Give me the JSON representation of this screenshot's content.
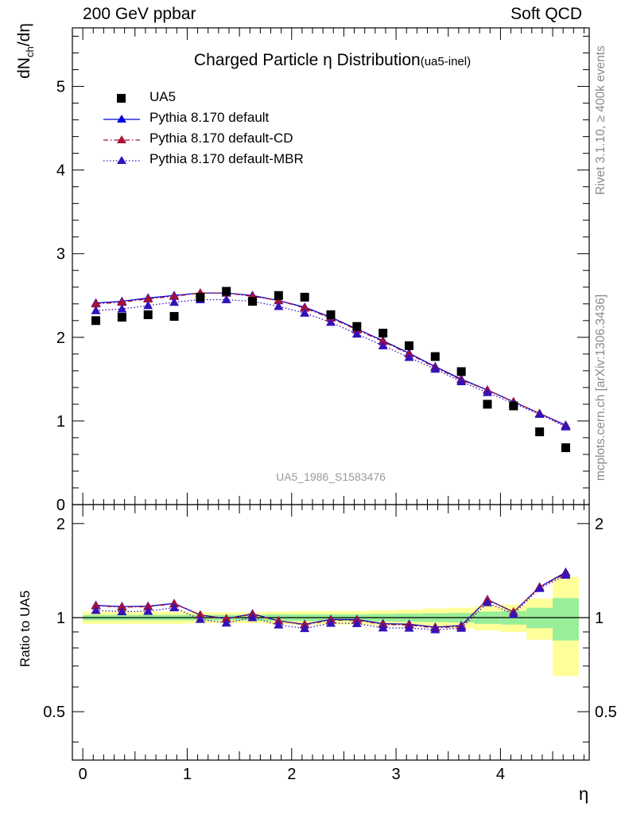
{
  "header": {
    "left": "200 GeV ppbar",
    "right": "Soft QCD"
  },
  "side_labels": {
    "rivet": "Rivet 3.1.10, ≥ 400k events",
    "mcplots": "mcplots.cern.ch [arXiv:1306.3436]"
  },
  "chart_data": {
    "type": "scatter",
    "title": "Charged Particle η Distribution",
    "title_suffix": "(ua5-inel)",
    "watermark": "UA5_1986_S1583476",
    "xlabel": "η",
    "ylabel": "dN_ch/dη",
    "ratio_ylabel": "Ratio to UA5",
    "xlim": [
      -0.1,
      4.85
    ],
    "ylim": [
      0,
      5.7
    ],
    "ratio_ylim": [
      0.35,
      2.3
    ],
    "x_ticks": [
      0,
      1,
      2,
      3,
      4
    ],
    "y_ticks": [
      0,
      1,
      2,
      3,
      4,
      5
    ],
    "ratio_ticks": [
      0.5,
      1,
      2
    ],
    "x": [
      0.125,
      0.375,
      0.625,
      0.875,
      1.125,
      1.375,
      1.625,
      1.875,
      2.125,
      2.375,
      2.625,
      2.875,
      3.125,
      3.375,
      3.625,
      3.875,
      4.125,
      4.375,
      4.625
    ],
    "data_series": {
      "name": "UA5",
      "color": "#000000",
      "values": [
        2.2,
        2.24,
        2.27,
        2.25,
        2.48,
        2.55,
        2.43,
        2.5,
        2.48,
        2.27,
        2.13,
        2.05,
        1.9,
        1.77,
        1.59,
        1.2,
        1.18,
        0.87,
        0.68
      ]
    },
    "series": [
      {
        "name": "Pythia 8.170 default",
        "color": "#0000dd",
        "style": "solid",
        "values": [
          2.41,
          2.43,
          2.47,
          2.5,
          2.53,
          2.53,
          2.5,
          2.44,
          2.36,
          2.24,
          2.1,
          1.96,
          1.81,
          1.65,
          1.5,
          1.37,
          1.23,
          1.09,
          0.95
        ],
        "ratio": [
          1.095,
          1.085,
          1.088,
          1.11,
          1.02,
          0.992,
          1.029,
          0.976,
          0.952,
          0.987,
          0.986,
          0.956,
          0.953,
          0.932,
          0.943,
          1.142,
          1.042,
          1.253,
          1.397
        ]
      },
      {
        "name": "Pythia 8.170 default-CD",
        "color": "#aa1133",
        "style": "dashdot",
        "values": [
          2.4,
          2.42,
          2.46,
          2.49,
          2.53,
          2.53,
          2.49,
          2.44,
          2.35,
          2.23,
          2.09,
          1.95,
          1.8,
          1.64,
          1.49,
          1.37,
          1.23,
          1.09,
          0.94
        ],
        "ratio": [
          1.091,
          1.08,
          1.084,
          1.107,
          1.02,
          0.992,
          1.025,
          0.976,
          0.948,
          0.982,
          0.981,
          0.951,
          0.947,
          0.927,
          0.937,
          1.142,
          1.042,
          1.253,
          1.382
        ]
      },
      {
        "name": "Pythia 8.170 default-MBR",
        "color": "#3311bb",
        "style": "dotted",
        "values": [
          2.32,
          2.34,
          2.38,
          2.42,
          2.45,
          2.45,
          2.43,
          2.37,
          2.29,
          2.18,
          2.04,
          1.9,
          1.76,
          1.62,
          1.47,
          1.34,
          1.21,
          1.08,
          0.93
        ],
        "ratio": [
          1.055,
          1.045,
          1.048,
          1.076,
          0.988,
          0.961,
          1.0,
          0.948,
          0.923,
          0.96,
          0.958,
          0.927,
          0.926,
          0.915,
          0.925,
          1.117,
          1.025,
          1.241,
          1.368
        ]
      }
    ],
    "ratio_bands": {
      "inner_color": "#99ee99",
      "outer_color": "#ffff99",
      "inner": [
        0.02,
        0.02,
        0.02,
        0.02,
        0.02,
        0.02,
        0.02,
        0.025,
        0.025,
        0.025,
        0.025,
        0.028,
        0.03,
        0.032,
        0.035,
        0.045,
        0.05,
        0.075,
        0.155
      ],
      "outer": [
        0.045,
        0.045,
        0.045,
        0.045,
        0.04,
        0.04,
        0.04,
        0.045,
        0.05,
        0.05,
        0.05,
        0.055,
        0.06,
        0.07,
        0.075,
        0.09,
        0.1,
        0.15,
        0.35
      ]
    }
  }
}
